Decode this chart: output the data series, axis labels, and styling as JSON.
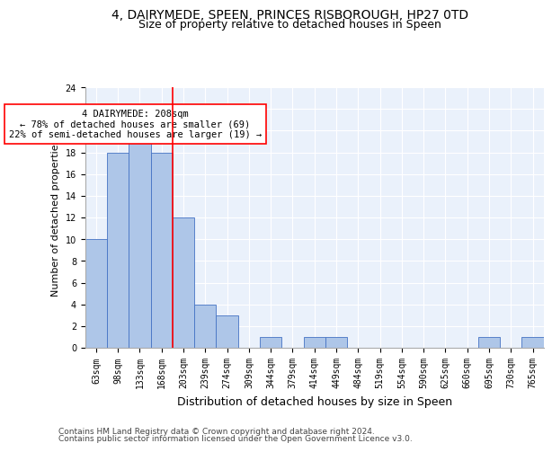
{
  "title": "4, DAIRYMEDE, SPEEN, PRINCES RISBOROUGH, HP27 0TD",
  "subtitle": "Size of property relative to detached houses in Speen",
  "xlabel": "Distribution of detached houses by size in Speen",
  "ylabel": "Number of detached properties",
  "categories": [
    "63sqm",
    "98sqm",
    "133sqm",
    "168sqm",
    "203sqm",
    "239sqm",
    "274sqm",
    "309sqm",
    "344sqm",
    "379sqm",
    "414sqm",
    "449sqm",
    "484sqm",
    "519sqm",
    "554sqm",
    "590sqm",
    "625sqm",
    "660sqm",
    "695sqm",
    "730sqm",
    "765sqm"
  ],
  "values": [
    10,
    18,
    20,
    18,
    12,
    4,
    3,
    0,
    1,
    0,
    1,
    1,
    0,
    0,
    0,
    0,
    0,
    0,
    1,
    0,
    1
  ],
  "bar_color": "#aec6e8",
  "bar_edge_color": "#4472c4",
  "vline_color": "red",
  "vline_x_index": 3.5,
  "annotation_text": "4 DAIRYMEDE: 208sqm\n← 78% of detached houses are smaller (69)\n22% of semi-detached houses are larger (19) →",
  "annotation_box_color": "white",
  "annotation_box_edge_color": "red",
  "ylim": [
    0,
    24
  ],
  "yticks": [
    0,
    2,
    4,
    6,
    8,
    10,
    12,
    14,
    16,
    18,
    20,
    22,
    24
  ],
  "footer_line1": "Contains HM Land Registry data © Crown copyright and database right 2024.",
  "footer_line2": "Contains public sector information licensed under the Open Government Licence v3.0.",
  "background_color": "#eaf1fb",
  "title_fontsize": 10,
  "subtitle_fontsize": 9,
  "xlabel_fontsize": 9,
  "ylabel_fontsize": 8,
  "tick_fontsize": 7,
  "annotation_fontsize": 7.5,
  "footer_fontsize": 6.5
}
